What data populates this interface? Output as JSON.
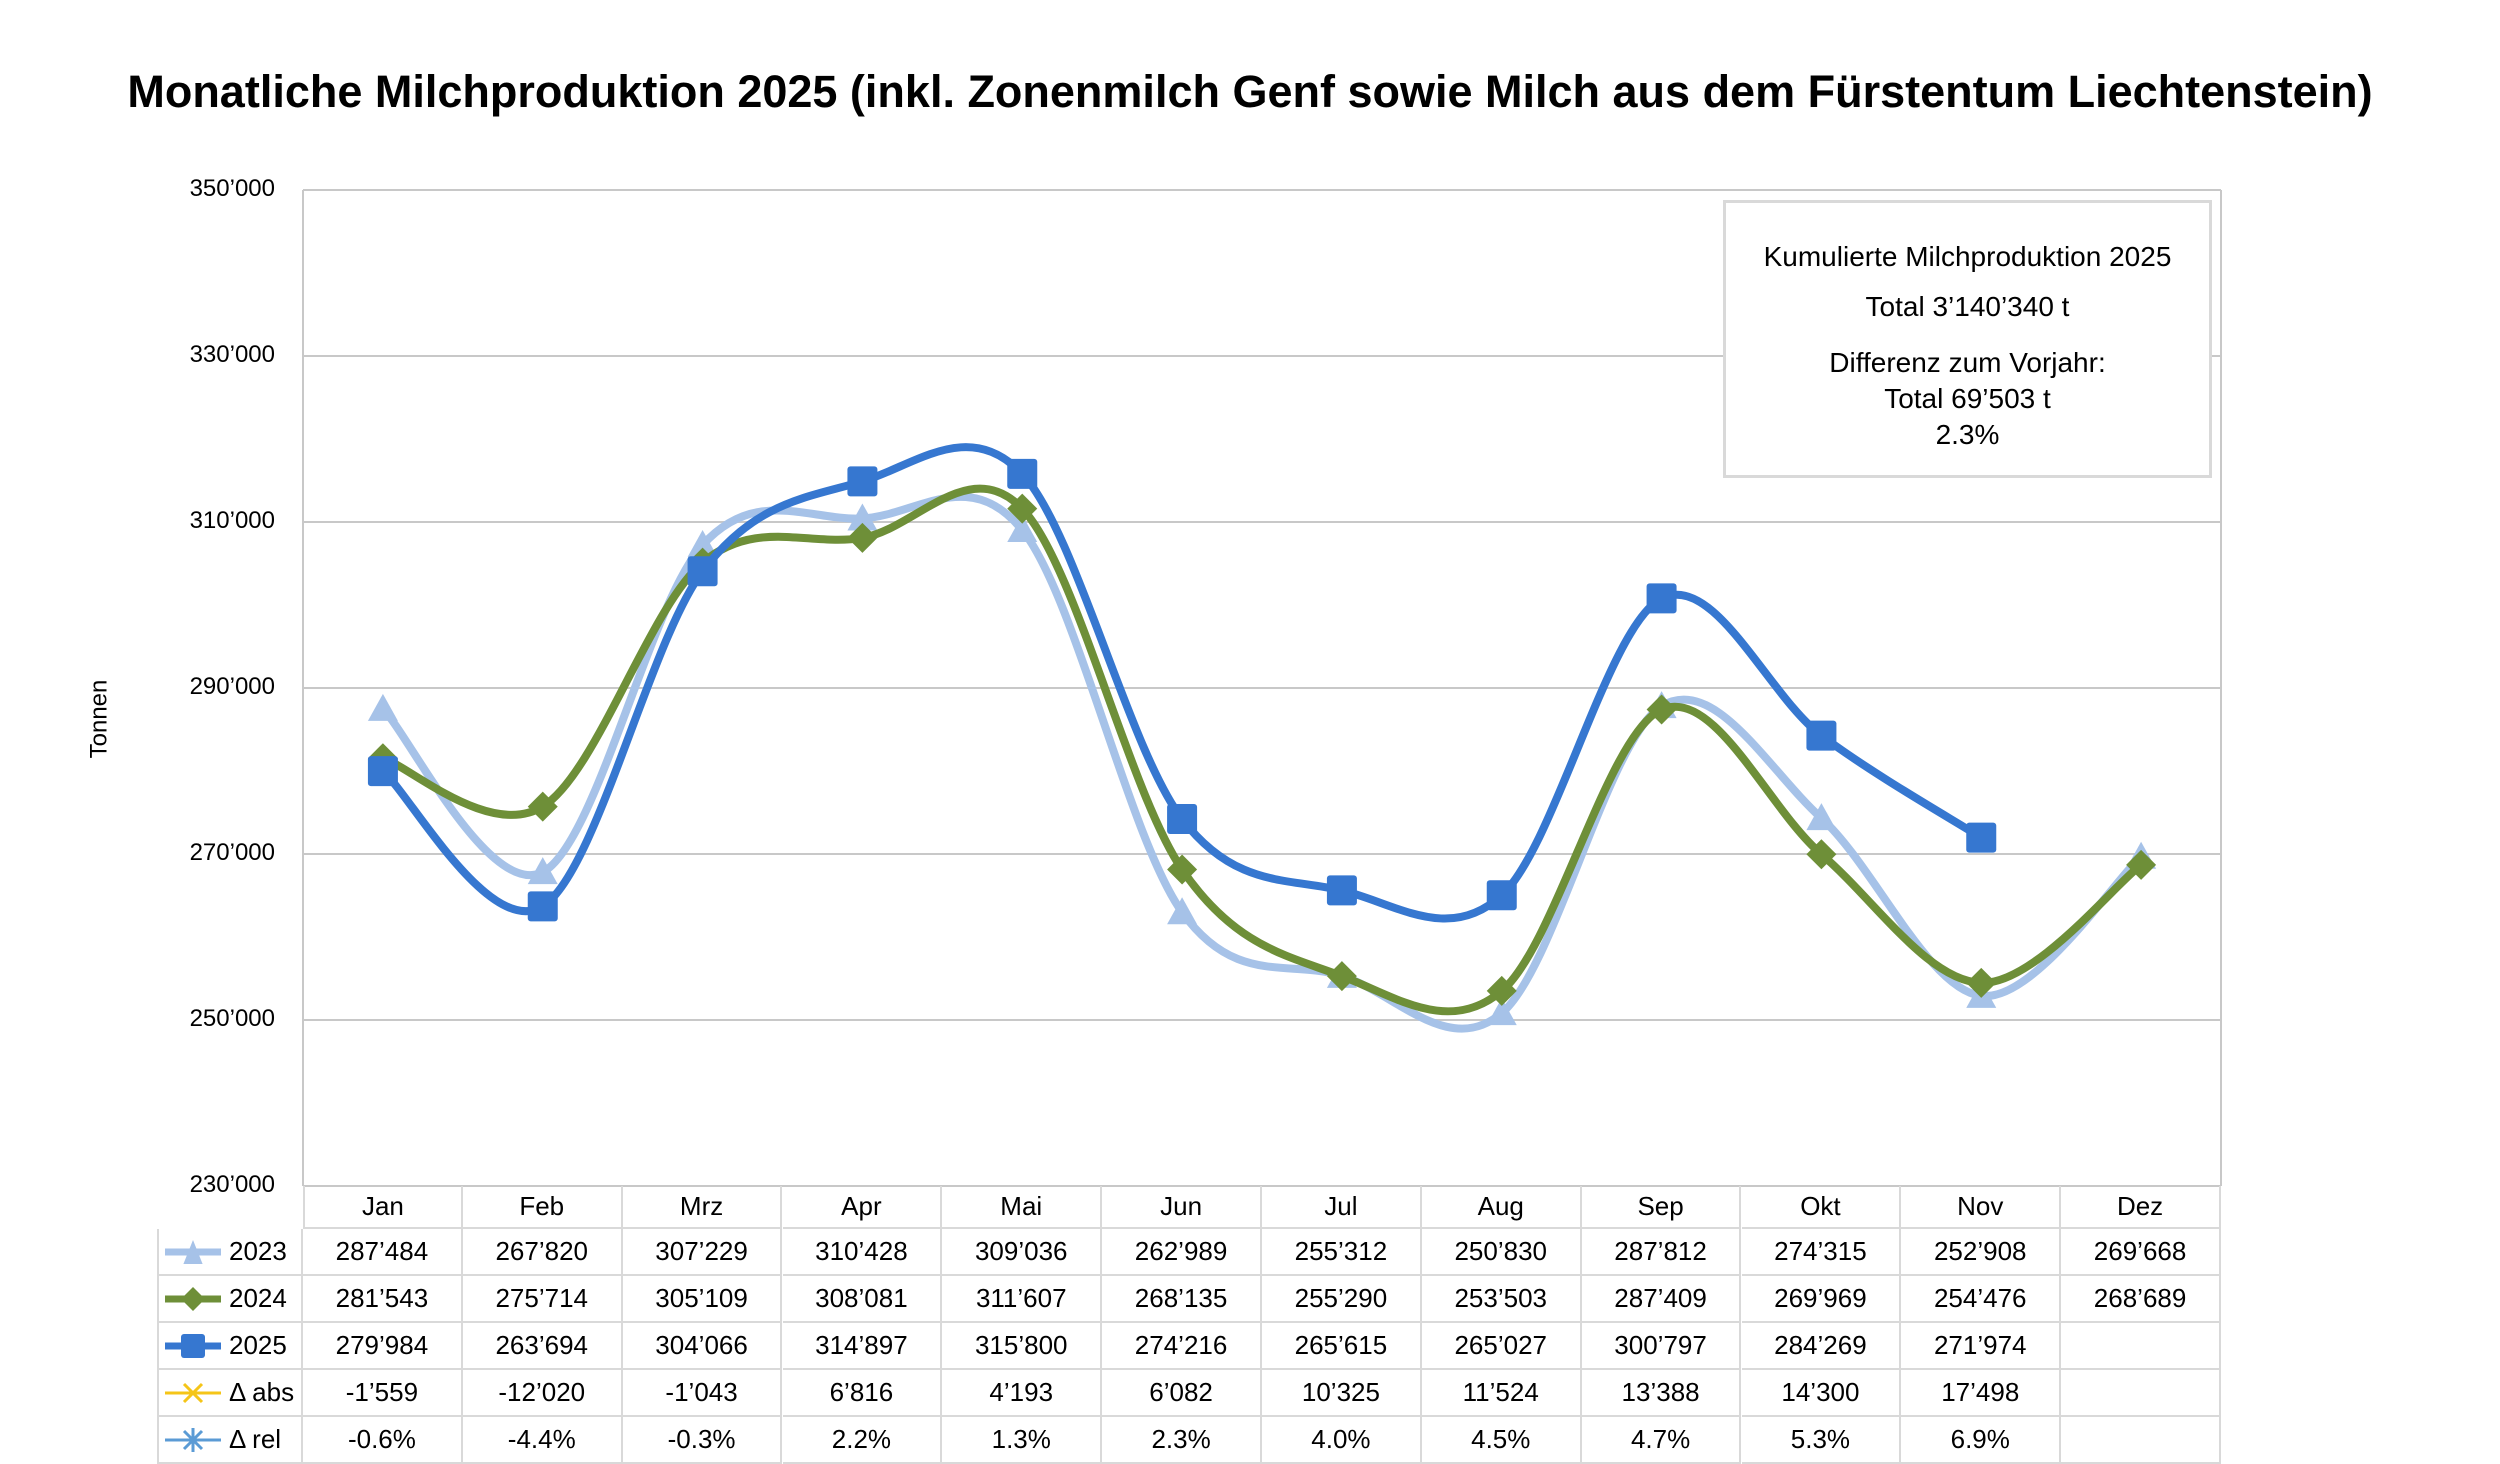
{
  "chart_data": {
    "type": "line",
    "title": "Monatliche Milchproduktion 2025 (inkl. Zonenmilch Genf sowie Milch aus dem Fürstentum Liechtenstein)",
    "ylabel": "Tonnen",
    "xlabel": "",
    "ylim": [
      230000,
      350000
    ],
    "yticks": [
      230000,
      250000,
      270000,
      290000,
      310000,
      330000,
      350000
    ],
    "ytick_labels": [
      "230’000",
      "250’000",
      "270’000",
      "290’000",
      "310’000",
      "330’000",
      "350’000"
    ],
    "grid": true,
    "categories": [
      "Jan",
      "Feb",
      "Mrz",
      "Apr",
      "Mai",
      "Jun",
      "Jul",
      "Aug",
      "Sep",
      "Okt",
      "Nov",
      "Dez"
    ],
    "series": [
      {
        "name": "2023",
        "color": "#a6c2e8",
        "marker": "triangle",
        "plotted": true,
        "values": [
          287484,
          267820,
          307229,
          310428,
          309036,
          262989,
          255312,
          250830,
          287812,
          274315,
          252908,
          269668
        ],
        "labels": [
          "287’484",
          "267’820",
          "307’229",
          "310’428",
          "309’036",
          "262’989",
          "255’312",
          "250’830",
          "287’812",
          "274’315",
          "252’908",
          "269’668"
        ]
      },
      {
        "name": "2024",
        "color": "#6e8f38",
        "marker": "diamond",
        "plotted": true,
        "values": [
          281543,
          275714,
          305109,
          308081,
          311607,
          268135,
          255290,
          253503,
          287409,
          269969,
          254476,
          268689
        ],
        "labels": [
          "281’543",
          "275’714",
          "305’109",
          "308’081",
          "311’607",
          "268’135",
          "255’290",
          "253’503",
          "287’409",
          "269’969",
          "254’476",
          "268’689"
        ]
      },
      {
        "name": "2025",
        "color": "#3677d0",
        "marker": "square",
        "plotted": true,
        "values": [
          279984,
          263694,
          304066,
          314897,
          315800,
          274216,
          265615,
          265027,
          300797,
          284269,
          271974,
          null
        ],
        "labels": [
          "279’984",
          "263’694",
          "304’066",
          "314’897",
          "315’800",
          "274’216",
          "265’615",
          "265’027",
          "300’797",
          "284’269",
          "271’974",
          ""
        ]
      },
      {
        "name": "Δ abs",
        "color": "#f5c518",
        "marker": "x",
        "plotted": false,
        "values": [
          -1559,
          -12020,
          -1043,
          6816,
          4193,
          6082,
          10325,
          11524,
          13388,
          14300,
          17498,
          null
        ],
        "labels": [
          "-1’559",
          "-12’020",
          "-1’043",
          "6’816",
          "4’193",
          "6’082",
          "10’325",
          "11’524",
          "13’388",
          "14’300",
          "17’498",
          ""
        ]
      },
      {
        "name": "Δ rel",
        "color": "#5b9bd5",
        "marker": "star",
        "plotted": false,
        "values": [
          -0.6,
          -4.4,
          -0.3,
          2.2,
          1.3,
          2.3,
          4.0,
          4.5,
          4.7,
          5.3,
          6.9,
          null
        ],
        "labels": [
          "-0.6%",
          "-4.4%",
          "-0.3%",
          "2.2%",
          "1.3%",
          "2.3%",
          "4.0%",
          "4.5%",
          "4.7%",
          "5.3%",
          "6.9%",
          ""
        ]
      }
    ],
    "annotation": {
      "heading": "Kumulierte Milchproduktion 2025",
      "total": "Total 3’140’340 t",
      "diff_label": "Differenz zum Vorjahr:",
      "diff_total": "Total 69’503 t",
      "diff_pct": "2.3%"
    }
  }
}
